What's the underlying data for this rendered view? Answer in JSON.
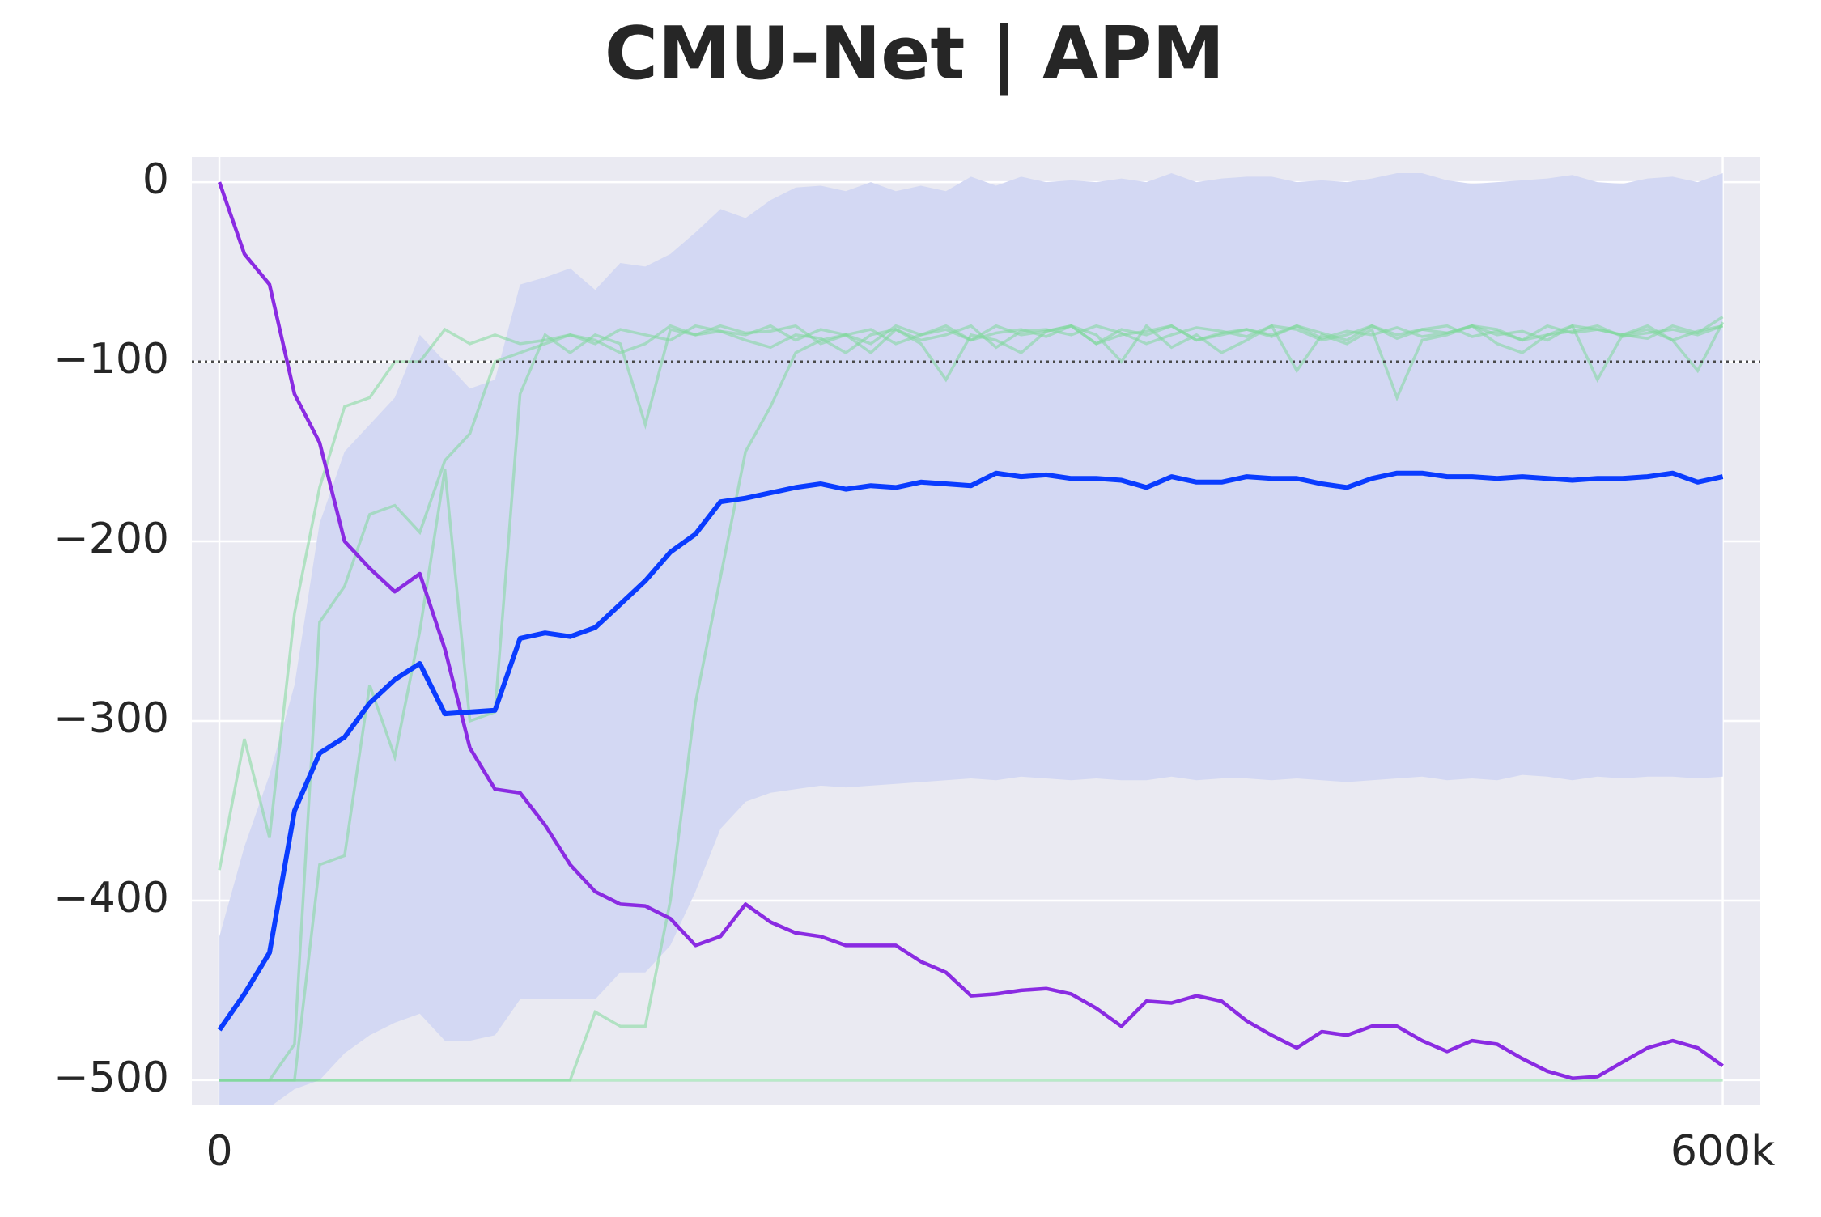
{
  "chart_data": {
    "type": "line",
    "title": "CMU-Net | APM",
    "x": [
      0,
      10000,
      20000,
      30000,
      40000,
      50000,
      60000,
      70000,
      80000,
      90000,
      100000,
      110000,
      120000,
      130000,
      140000,
      150000,
      160000,
      170000,
      180000,
      190000,
      200000,
      210000,
      220000,
      230000,
      240000,
      250000,
      260000,
      270000,
      280000,
      290000,
      300000,
      310000,
      320000,
      330000,
      340000,
      350000,
      360000,
      370000,
      380000,
      390000,
      400000,
      410000,
      420000,
      430000,
      440000,
      450000,
      460000,
      470000,
      480000,
      490000,
      500000,
      510000,
      520000,
      530000,
      540000,
      550000,
      560000,
      570000,
      580000,
      590000,
      600000
    ],
    "xlim": [
      -11000,
      615000
    ],
    "xticks": [
      0,
      {
        "value": 600000,
        "label": "600k"
      }
    ],
    "ylim": [
      -514,
      14
    ],
    "yticks": [
      0,
      {
        "value": -100,
        "label": "−100"
      },
      {
        "value": -200,
        "label": "−200"
      },
      {
        "value": -300,
        "label": "−300"
      },
      {
        "value": -400,
        "label": "−400"
      },
      {
        "value": -500,
        "label": "−500"
      }
    ],
    "grid": true,
    "hline": -100,
    "band": {
      "color": "#d3d8f3",
      "upper": [
        -420,
        -370,
        -330,
        -280,
        -190,
        -150,
        -135,
        -120,
        -85,
        -100,
        -115,
        -110,
        -57,
        -53,
        -48,
        -60,
        -45,
        -47,
        -40,
        -28,
        -15,
        -20,
        -10,
        -3,
        -2,
        -5,
        0,
        -5,
        -2,
        -5,
        3,
        -2,
        3,
        0,
        1,
        0,
        2,
        0,
        5,
        0,
        2,
        3,
        3,
        0,
        1,
        0,
        2,
        5,
        5,
        1,
        -1,
        0,
        1,
        2,
        4,
        0,
        -1,
        2,
        3,
        0,
        5
      ],
      "lower": [
        -515,
        -515,
        -515,
        -505,
        -500,
        -485,
        -475,
        -468,
        -463,
        -478,
        -478,
        -475,
        -455,
        -455,
        -455,
        -455,
        -440,
        -440,
        -425,
        -395,
        -360,
        -345,
        -340,
        -338,
        -336,
        -337,
        -336,
        -335,
        -334,
        -333,
        -332,
        -333,
        -331,
        -332,
        -333,
        -332,
        -333,
        -333,
        -331,
        -333,
        -332,
        -332,
        -333,
        -332,
        -333,
        -334,
        -333,
        -332,
        -331,
        -333,
        -332,
        -333,
        -330,
        -331,
        -333,
        -331,
        -332,
        -331,
        -331,
        -332,
        -331
      ]
    },
    "runs": [
      {
        "color": "#7fd89a",
        "values": [
          -383,
          -310,
          -365,
          -240,
          -170,
          -125,
          -120,
          -100,
          -100,
          -82,
          -90,
          -85,
          -90,
          -88,
          -85,
          -90,
          -82,
          -85,
          -88,
          -80,
          -83,
          -85,
          -80,
          -88,
          -82,
          -85,
          -90,
          -80,
          -85,
          -82,
          -88,
          -80,
          -85,
          -83,
          -80,
          -90,
          -82,
          -85,
          -80,
          -88,
          -85,
          -82,
          -86,
          -80,
          -84,
          -88,
          -80,
          -85,
          -82,
          -80,
          -86,
          -83,
          -88,
          -80,
          -84,
          -82,
          -85,
          -80,
          -88,
          -83,
          -80
        ]
      },
      {
        "color": "#7fd89a",
        "values": [
          -500,
          -500,
          -500,
          -480,
          -245,
          -225,
          -185,
          -180,
          -195,
          -155,
          -140,
          -100,
          -95,
          -90,
          -85,
          -88,
          -95,
          -90,
          -80,
          -85,
          -83,
          -88,
          -92,
          -85,
          -87,
          -95,
          -85,
          -82,
          -90,
          -110,
          -85,
          -88,
          -95,
          -83,
          -80,
          -85,
          -100,
          -80,
          -92,
          -85,
          -95,
          -88,
          -80,
          -105,
          -85,
          -90,
          -82,
          -120,
          -88,
          -85,
          -80,
          -90,
          -95,
          -85,
          -80,
          -110,
          -85,
          -82,
          -88,
          -105,
          -78
        ]
      },
      {
        "color": "#7fd89a",
        "values": [
          -500,
          -500,
          -500,
          -500,
          -380,
          -375,
          -280,
          -320,
          -250,
          -160,
          -300,
          -295,
          -118,
          -85,
          -95,
          -85,
          -90,
          -135,
          -82,
          -85,
          -80,
          -84,
          -83,
          -80,
          -90,
          -85,
          -95,
          -82,
          -88,
          -85,
          -80,
          -92,
          -83,
          -82,
          -85,
          -80,
          -84,
          -90,
          -85,
          -81,
          -83,
          -86,
          -80,
          -82,
          -88,
          -85,
          -80,
          -87,
          -82,
          -84,
          -80,
          -85,
          -83,
          -88,
          -80,
          -82,
          -85,
          -87,
          -80,
          -84,
          -75
        ]
      },
      {
        "color": "#7fd89a",
        "values": [
          -500,
          -500,
          -500,
          -500,
          -500,
          -500,
          -500,
          -500,
          -500,
          -500,
          -500,
          -500,
          -500,
          -500,
          -500,
          -462,
          -470,
          -470,
          -400,
          -290,
          -220,
          -150,
          -125,
          -95,
          -88,
          -85,
          -82,
          -90,
          -85,
          -80,
          -88,
          -84,
          -82,
          -86,
          -80,
          -90,
          -85,
          -83,
          -80,
          -88,
          -84,
          -82,
          -85,
          -80,
          -87,
          -83,
          -85,
          -81,
          -86,
          -84,
          -80,
          -82,
          -88,
          -85,
          -83,
          -80,
          -86,
          -84,
          -82,
          -85,
          -80
        ]
      },
      {
        "color": "#7fd89a",
        "values": [
          -500,
          -500,
          -500,
          -500,
          -500,
          -500,
          -500,
          -500,
          -500,
          -500,
          -500,
          -500,
          -500,
          -500,
          -500,
          -500,
          -500,
          -500,
          -500,
          -500,
          -500,
          -500,
          -500,
          -500,
          -500,
          -500,
          -500,
          -500,
          -500,
          -500,
          -500,
          -500,
          -500,
          -500,
          -500,
          -500,
          -500,
          -500,
          -500,
          -500,
          -500,
          -500,
          -500,
          -500,
          -500,
          -500,
          -500,
          -500,
          -500,
          -500,
          -500,
          -500,
          -500,
          -500,
          -500,
          -500,
          -500,
          -500,
          -500,
          -500,
          -500
        ]
      }
    ],
    "series": [
      {
        "color": "#8a2be2",
        "values": [
          0,
          -40,
          -57,
          -118,
          -145,
          -200,
          -215,
          -228,
          -218,
          -260,
          -315,
          -338,
          -340,
          -358,
          -380,
          -395,
          -402,
          -403,
          -410,
          -425,
          -420,
          -402,
          -412,
          -418,
          -420,
          -425,
          -425,
          -425,
          -434,
          -440,
          -453,
          -452,
          -450,
          -449,
          -452,
          -460,
          -470,
          -456,
          -457,
          -453,
          -456,
          -467,
          -475,
          -482,
          -473,
          -475,
          -470,
          -470,
          -478,
          -484,
          -478,
          -480,
          -488,
          -495,
          -499,
          -498,
          -490,
          -482,
          -478,
          -482,
          -492
        ]
      },
      {
        "color": "#0a3cff",
        "values": [
          -472,
          -452,
          -429,
          -350,
          -318,
          -309,
          -290,
          -277,
          -268,
          -296,
          -295,
          -294,
          -254,
          -251,
          -253,
          -248,
          -235,
          -222,
          -206,
          -196,
          -178,
          -176,
          -173,
          -170,
          -168,
          -171,
          -169,
          -170,
          -167,
          -168,
          -169,
          -162,
          -164,
          -163,
          -165,
          -165,
          -166,
          -170,
          -164,
          -167,
          -167,
          -164,
          -165,
          -165,
          -168,
          -170,
          -165,
          -162,
          -162,
          -164,
          -164,
          -165,
          -164,
          -165,
          -166,
          -165,
          -165,
          -164,
          -162,
          -167,
          -164
        ]
      }
    ]
  }
}
